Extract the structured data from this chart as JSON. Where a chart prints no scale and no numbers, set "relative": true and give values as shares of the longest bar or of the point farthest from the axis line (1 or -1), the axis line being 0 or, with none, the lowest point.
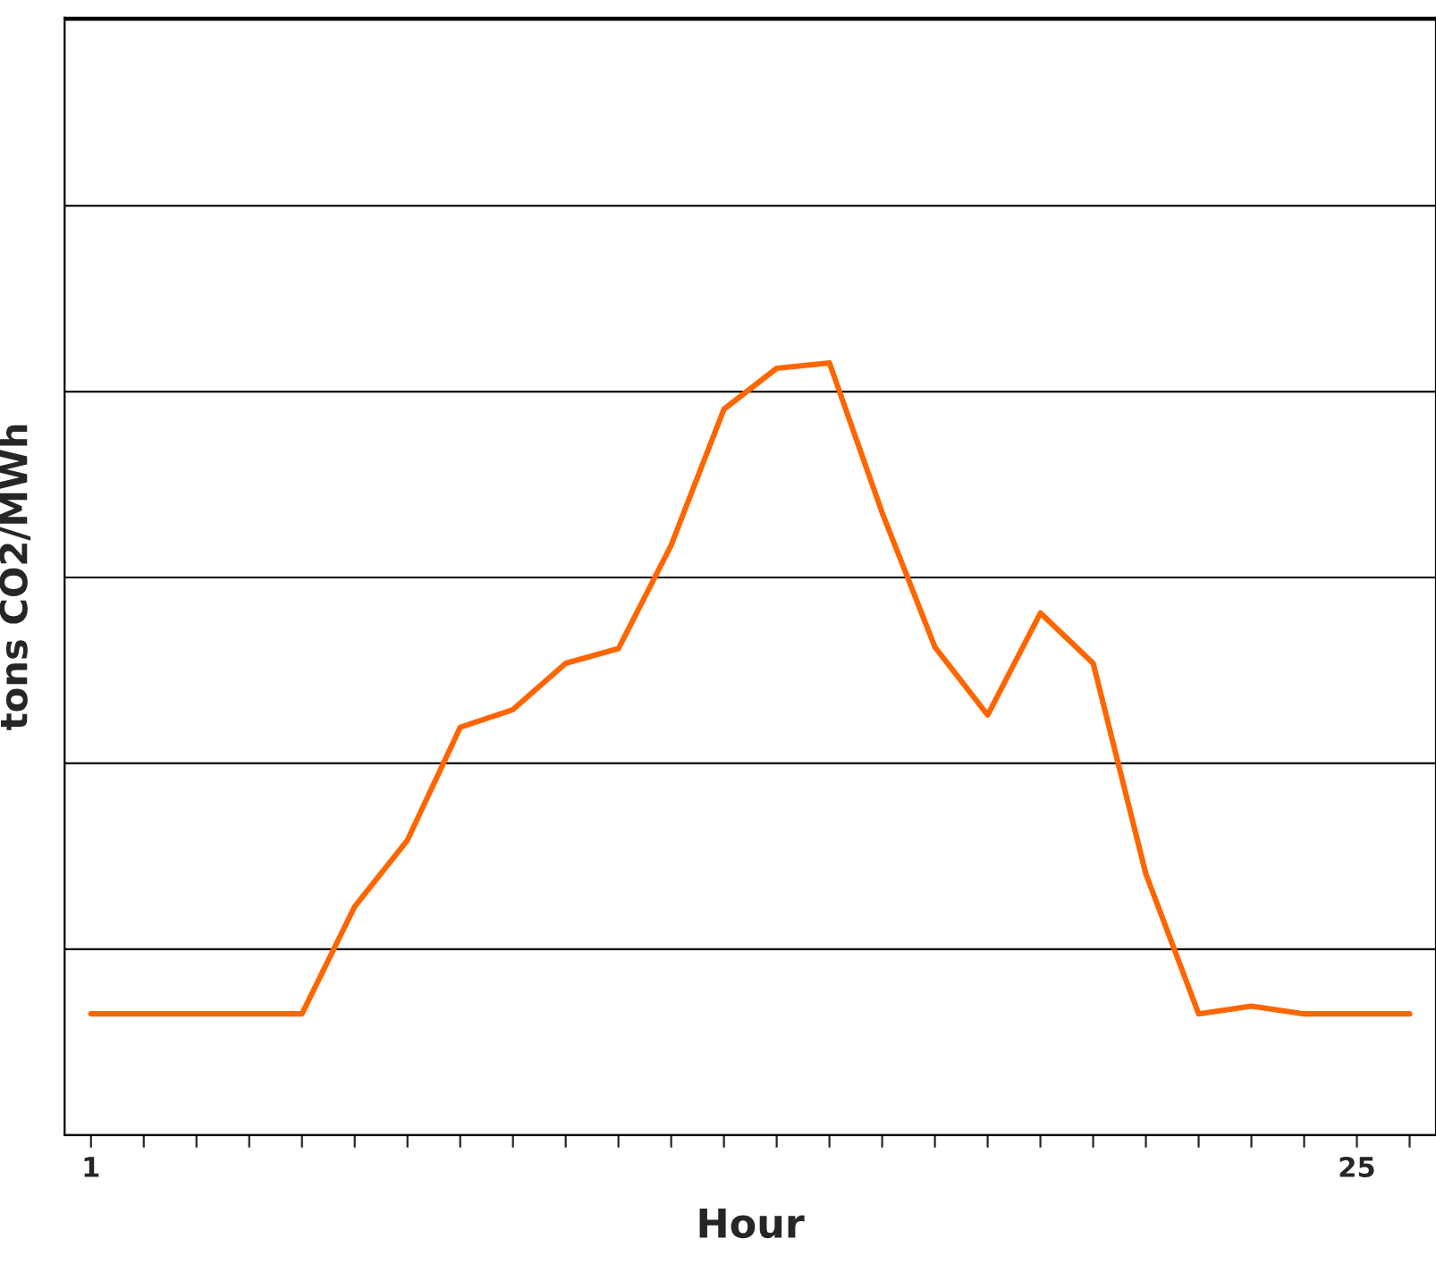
{
  "chart_data": {
    "type": "line",
    "xlabel": "Hour",
    "ylabel": "tons CO2/MWh",
    "relative": true,
    "x": [
      1,
      2,
      3,
      4,
      5,
      6,
      7,
      8,
      9,
      10,
      11,
      12,
      13,
      14,
      15,
      16,
      17,
      18,
      19,
      20,
      21,
      22,
      23,
      24,
      25,
      26
    ],
    "series": [
      {
        "color": "#ff6600",
        "values": [
          0.157,
          0.157,
          0.157,
          0.157,
          0.157,
          0.296,
          0.382,
          0.528,
          0.551,
          0.611,
          0.63,
          0.764,
          0.94,
          0.993,
          1,
          0.806,
          0.632,
          0.544,
          0.676,
          0.611,
          0.338,
          0.157,
          0.167,
          0.157,
          0.157,
          0.157
        ]
      }
    ],
    "xlim": [
      0.5,
      26.5
    ],
    "xticks": [
      1,
      {
        "value": 2,
        "label": null
      },
      {
        "value": 3,
        "label": null
      },
      {
        "value": 4,
        "label": null
      },
      {
        "value": 5,
        "label": null
      },
      {
        "value": 6,
        "label": null
      },
      {
        "value": 7,
        "label": null
      },
      {
        "value": 8,
        "label": null
      },
      {
        "value": 9,
        "label": null
      },
      {
        "value": 10,
        "label": null
      },
      {
        "value": 11,
        "label": null
      },
      {
        "value": 12,
        "label": null
      },
      {
        "value": 13,
        "label": null
      },
      {
        "value": 14,
        "label": null
      },
      {
        "value": 15,
        "label": null
      },
      {
        "value": 16,
        "label": null
      },
      {
        "value": 17,
        "label": null
      },
      {
        "value": 18,
        "label": null
      },
      {
        "value": 19,
        "label": null
      },
      {
        "value": 20,
        "label": null
      },
      {
        "value": 21,
        "label": null
      },
      {
        "value": 22,
        "label": null
      },
      {
        "value": 23,
        "label": null
      },
      {
        "value": 24,
        "label": null
      },
      25,
      {
        "value": 26,
        "label": null
      }
    ],
    "grid": "y",
    "marker": "none",
    "line_style": "solid",
    "legend": false,
    "tick_labels": "x"
  }
}
